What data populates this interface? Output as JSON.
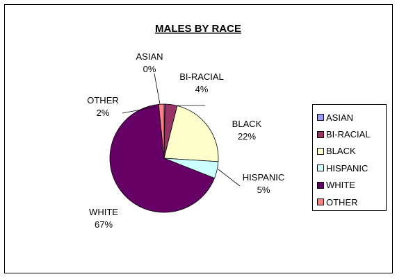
{
  "chart_data": {
    "type": "pie",
    "title": "MALES BY RACE",
    "slices": [
      {
        "label": "ASIAN",
        "value": 0.3,
        "percent_label": "0%",
        "color": "#9999FF"
      },
      {
        "label": "BI-RACIAL",
        "value": 3.6,
        "percent_label": "4%",
        "color": "#993366"
      },
      {
        "label": "BLACK",
        "value": 22.1,
        "percent_label": "22%",
        "color": "#FFFFCC"
      },
      {
        "label": "HISPANIC",
        "value": 5.0,
        "percent_label": "5%",
        "color": "#CCFFFF"
      },
      {
        "label": "WHITE",
        "value": 67.4,
        "percent_label": "67%",
        "color": "#660066"
      },
      {
        "label": "OTHER",
        "value": 1.6,
        "percent_label": "2%",
        "color": "#FF8080"
      }
    ],
    "legend": {
      "position": "right",
      "entries": [
        "ASIAN",
        "BI-RACIAL",
        "BLACK",
        "HISPANIC",
        "WHITE",
        "OTHER"
      ]
    }
  }
}
